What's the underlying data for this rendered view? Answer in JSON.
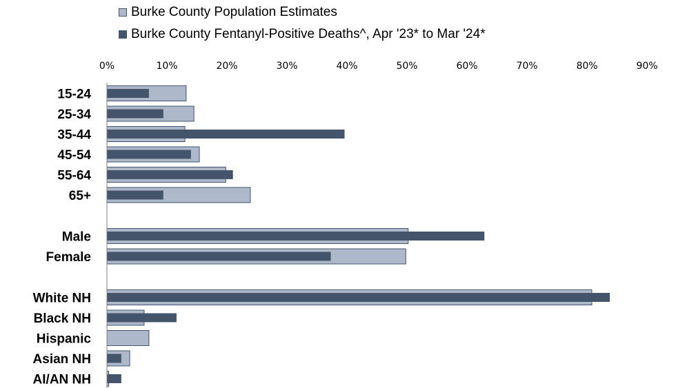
{
  "chart_data": {
    "type": "bar",
    "orientation": "horizontal",
    "categories": [
      "15-24",
      "25-34",
      "35-44",
      "45-54",
      "55-64",
      "65+",
      "Male",
      "Female",
      "White NH",
      "Black NH",
      "Hispanic",
      "Asian NH",
      "AI/AN NH"
    ],
    "groups": [
      [
        0,
        1,
        2,
        3,
        4,
        5
      ],
      [
        6,
        7
      ],
      [
        8,
        9,
        10,
        11,
        12
      ]
    ],
    "series": [
      {
        "name": "Burke County Population Estimates",
        "color": "#adb9ca",
        "border": "#44546a",
        "values": [
          13.2,
          14.5,
          13.0,
          15.4,
          19.8,
          23.9,
          50.2,
          49.8,
          80.8,
          6.2,
          7.0,
          3.8,
          0.3
        ]
      },
      {
        "name": "Burke County Fentanyl-Positive Deaths^, Apr '23* to Mar '24*",
        "color": "#44546a",
        "values": [
          7.0,
          9.4,
          39.6,
          14.0,
          21.0,
          9.4,
          62.9,
          37.3,
          83.8,
          11.6,
          0.0,
          2.4,
          2.4
        ]
      }
    ],
    "xlim": [
      0,
      90
    ],
    "ticks": [
      "0%",
      "10%",
      "20%",
      "30%",
      "40%",
      "50%",
      "60%",
      "70%",
      "80%",
      "90%"
    ],
    "legend_position": "top"
  }
}
